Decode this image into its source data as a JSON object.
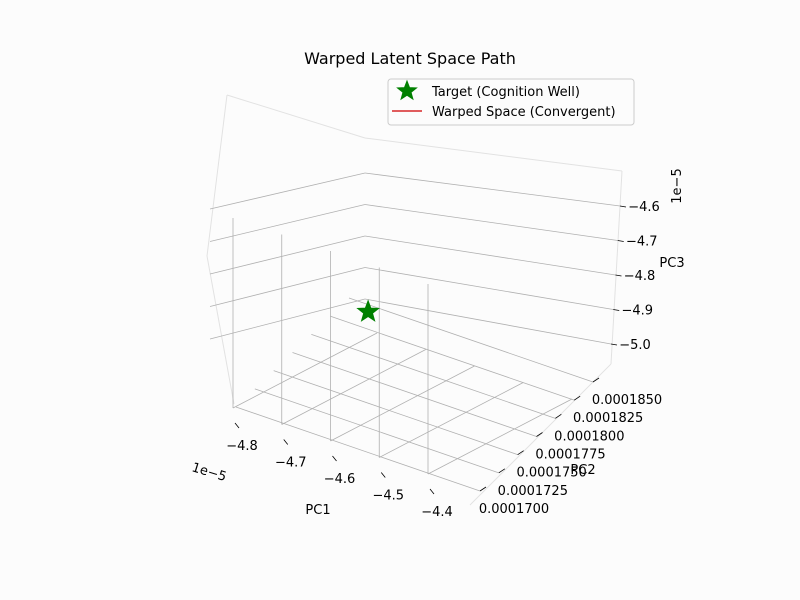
{
  "chart_data": {
    "type": "line",
    "projection": "3d",
    "title": "Warped Latent Space Path",
    "xlabel": "PC1",
    "ylabel": "PC2",
    "zlabel": "PC3",
    "x_ticks": [
      "−4.8",
      "−4.7",
      "−4.6",
      "−4.5",
      "−4.4"
    ],
    "y_ticks": [
      "0.0001700",
      "0.0001725",
      "0.0001750",
      "0.0001775",
      "0.0001800",
      "0.0001825",
      "0.0001850"
    ],
    "z_ticks": [
      "−5.0",
      "−4.9",
      "−4.8",
      "−4.7",
      "−4.6"
    ],
    "x_offset": "1e−5",
    "z_offset": "1e−5",
    "grid": true,
    "legend_position": "top-right",
    "series": [
      {
        "name": "Target (Cognition Well)",
        "kind": "marker",
        "marker": "star",
        "color": "#008000",
        "points": [
          {
            "x": -4.65e-05,
            "y": 0.0001775,
            "z": -4.79e-05
          }
        ]
      },
      {
        "name": "Warped Space (Convergent)",
        "kind": "line",
        "color": "#d62728",
        "points": []
      }
    ]
  }
}
